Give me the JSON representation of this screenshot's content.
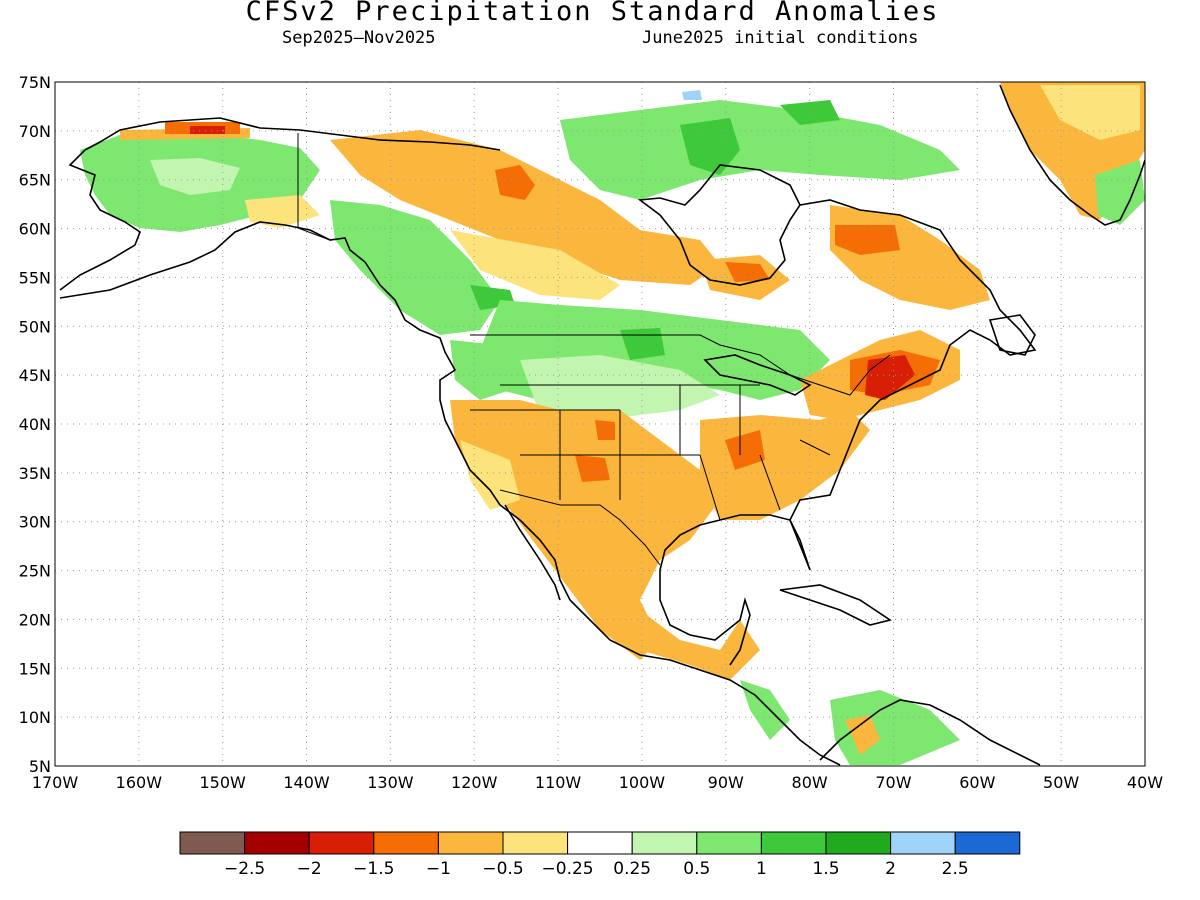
{
  "title": "CFSv2 Precipitation Standard Anomalies",
  "subtitle_left": "Sep2025—Nov2025",
  "subtitle_right": "June2025 initial conditions",
  "map": {
    "lat_labels": [
      "75N",
      "70N",
      "65N",
      "60N",
      "55N",
      "50N",
      "45N",
      "40N",
      "35N",
      "30N",
      "25N",
      "20N",
      "15N",
      "10N",
      "5N"
    ],
    "lon_labels": [
      "170W",
      "160W",
      "150W",
      "140W",
      "130W",
      "120W",
      "110W",
      "100W",
      "90W",
      "80W",
      "70W",
      "60W",
      "50W",
      "40W"
    ],
    "lon_min": -170,
    "lon_max": -40,
    "lat_min": 5,
    "lat_max": 75
  },
  "colorbar": {
    "colors": [
      "#7f5a4e",
      "#a50000",
      "#d81e05",
      "#f46d05",
      "#fbb73d",
      "#fde37c",
      "#ffffff",
      "#c2f5b0",
      "#7ee770",
      "#3dc93a",
      "#1faa1f",
      "#9dd4f7",
      "#1a69d4"
    ],
    "labels": [
      "−2.5",
      "−2",
      "−1.5",
      "−1",
      "−0.5",
      "−0.25",
      "0.25",
      "0.5",
      "1",
      "1.5",
      "2",
      "2.5"
    ]
  },
  "legend": {
    "colors": {
      "strong_dry": "#d81e05",
      "dry_med": "#f46d05",
      "dry": "#fbb73d",
      "slight_dry": "#fde37c",
      "slight_wet": "#c2f5b0",
      "wet": "#7ee770",
      "wet_med": "#3dc93a",
      "strong_wet": "#1faa1f",
      "very_wet": "#9dd4f7"
    }
  }
}
